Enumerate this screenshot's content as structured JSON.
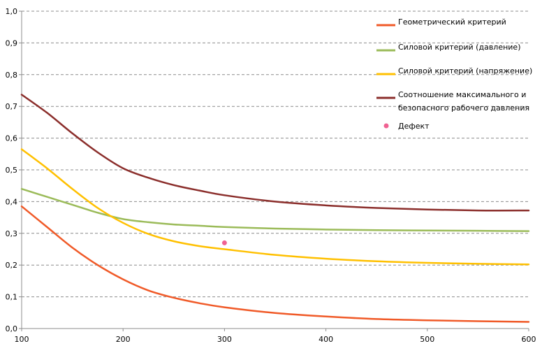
{
  "chart_data": {
    "type": "line",
    "title": "",
    "xlabel": "",
    "ylabel": "",
    "xlim": [
      100,
      600
    ],
    "ylim": [
      0,
      1.0
    ],
    "x_ticks": [
      "100",
      "200",
      "300",
      "400",
      "500",
      "600"
    ],
    "y_ticks": [
      "0,0",
      "0,1",
      "0,2",
      "0,3",
      "0,4",
      "0,5",
      "0,6",
      "0,7",
      "0,8",
      "0,9",
      "1,0"
    ],
    "grid": "horizontal-dashed",
    "legend_position": "top-right",
    "series": [
      {
        "name": "Геометрический критерий",
        "color": "#f05a28",
        "points": [
          [
            100,
            0.385
          ],
          [
            125,
            0.32
          ],
          [
            150,
            0.255
          ],
          [
            175,
            0.2
          ],
          [
            200,
            0.155
          ],
          [
            225,
            0.12
          ],
          [
            250,
            0.097
          ],
          [
            275,
            0.08
          ],
          [
            300,
            0.067
          ],
          [
            350,
            0.049
          ],
          [
            400,
            0.038
          ],
          [
            450,
            0.03
          ],
          [
            500,
            0.026
          ],
          [
            550,
            0.023
          ],
          [
            600,
            0.021
          ]
        ]
      },
      {
        "name": "Силовой критерий (давление)",
        "color": "#9bbb59",
        "points": [
          [
            100,
            0.44
          ],
          [
            125,
            0.415
          ],
          [
            150,
            0.39
          ],
          [
            175,
            0.365
          ],
          [
            200,
            0.345
          ],
          [
            225,
            0.335
          ],
          [
            250,
            0.328
          ],
          [
            275,
            0.324
          ],
          [
            300,
            0.32
          ],
          [
            350,
            0.315
          ],
          [
            400,
            0.312
          ],
          [
            450,
            0.31
          ],
          [
            500,
            0.309
          ],
          [
            550,
            0.308
          ],
          [
            600,
            0.307
          ]
        ]
      },
      {
        "name": "Силовой критерий (напряжение)",
        "color": "#ffc000",
        "points": [
          [
            100,
            0.565
          ],
          [
            125,
            0.505
          ],
          [
            150,
            0.44
          ],
          [
            175,
            0.38
          ],
          [
            200,
            0.333
          ],
          [
            225,
            0.298
          ],
          [
            250,
            0.275
          ],
          [
            275,
            0.26
          ],
          [
            300,
            0.25
          ],
          [
            350,
            0.232
          ],
          [
            400,
            0.22
          ],
          [
            450,
            0.212
          ],
          [
            500,
            0.207
          ],
          [
            550,
            0.204
          ],
          [
            600,
            0.202
          ]
        ]
      },
      {
        "name": "Соотношение максимального и безопасного рабочего давления",
        "name_lines": [
          "Соотношение максимального и",
          "безопасного рабочего давления"
        ],
        "color": "#8b2e2b",
        "points": [
          [
            100,
            0.737
          ],
          [
            125,
            0.68
          ],
          [
            150,
            0.615
          ],
          [
            175,
            0.555
          ],
          [
            200,
            0.505
          ],
          [
            225,
            0.475
          ],
          [
            250,
            0.452
          ],
          [
            275,
            0.435
          ],
          [
            300,
            0.42
          ],
          [
            350,
            0.4
          ],
          [
            400,
            0.388
          ],
          [
            450,
            0.38
          ],
          [
            500,
            0.375
          ],
          [
            550,
            0.372
          ],
          [
            600,
            0.372
          ]
        ]
      }
    ],
    "markers": [
      {
        "name": "Дефект",
        "color": "#f06292",
        "x": 300,
        "y": 0.27
      }
    ]
  }
}
